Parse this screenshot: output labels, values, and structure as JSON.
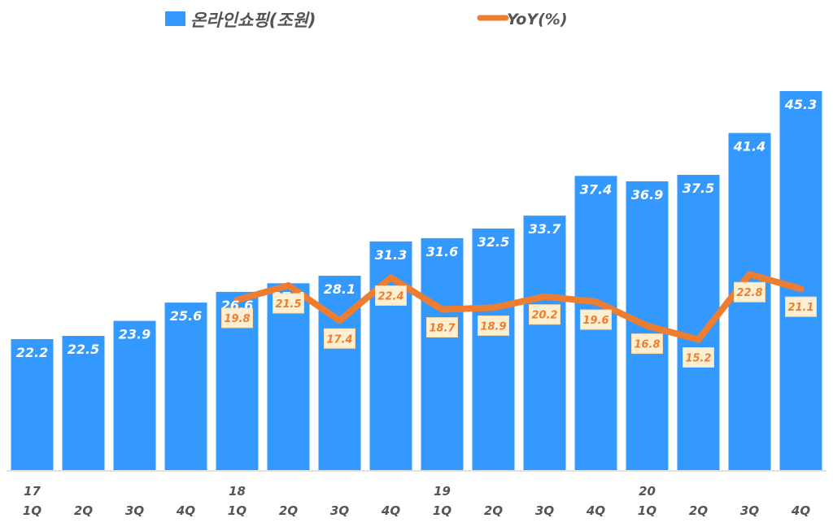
{
  "chart_data": {
    "type": "bar+line",
    "categories": [
      "1Q",
      "2Q",
      "3Q",
      "4Q",
      "1Q",
      "2Q",
      "3Q",
      "4Q",
      "1Q",
      "2Q",
      "3Q",
      "4Q",
      "1Q",
      "2Q",
      "3Q",
      "4Q"
    ],
    "year_labels": [
      "17",
      "",
      "",
      "",
      "18",
      "",
      "",
      "",
      "19",
      "",
      "",
      "",
      "20",
      "",
      "",
      ""
    ],
    "series": [
      {
        "name": "온라인쇼핑(조원)",
        "type": "bar",
        "axis": "primary",
        "color": "#3399ff",
        "values": [
          22.2,
          22.5,
          23.9,
          25.6,
          26.6,
          27.4,
          28.1,
          31.3,
          31.6,
          32.5,
          33.7,
          37.4,
          36.9,
          37.5,
          41.4,
          45.3
        ]
      },
      {
        "name": "YoY(%)",
        "type": "line",
        "axis": "secondary",
        "color": "#ed7d31",
        "values": [
          null,
          null,
          null,
          null,
          19.8,
          21.5,
          17.4,
          22.4,
          18.7,
          18.9,
          20.2,
          19.6,
          16.8,
          15.2,
          22.8,
          21.1
        ]
      }
    ],
    "ylim": [
      10,
      50
    ],
    "y2lim": [
      0,
      50
    ],
    "grid": false,
    "legend": "top"
  }
}
